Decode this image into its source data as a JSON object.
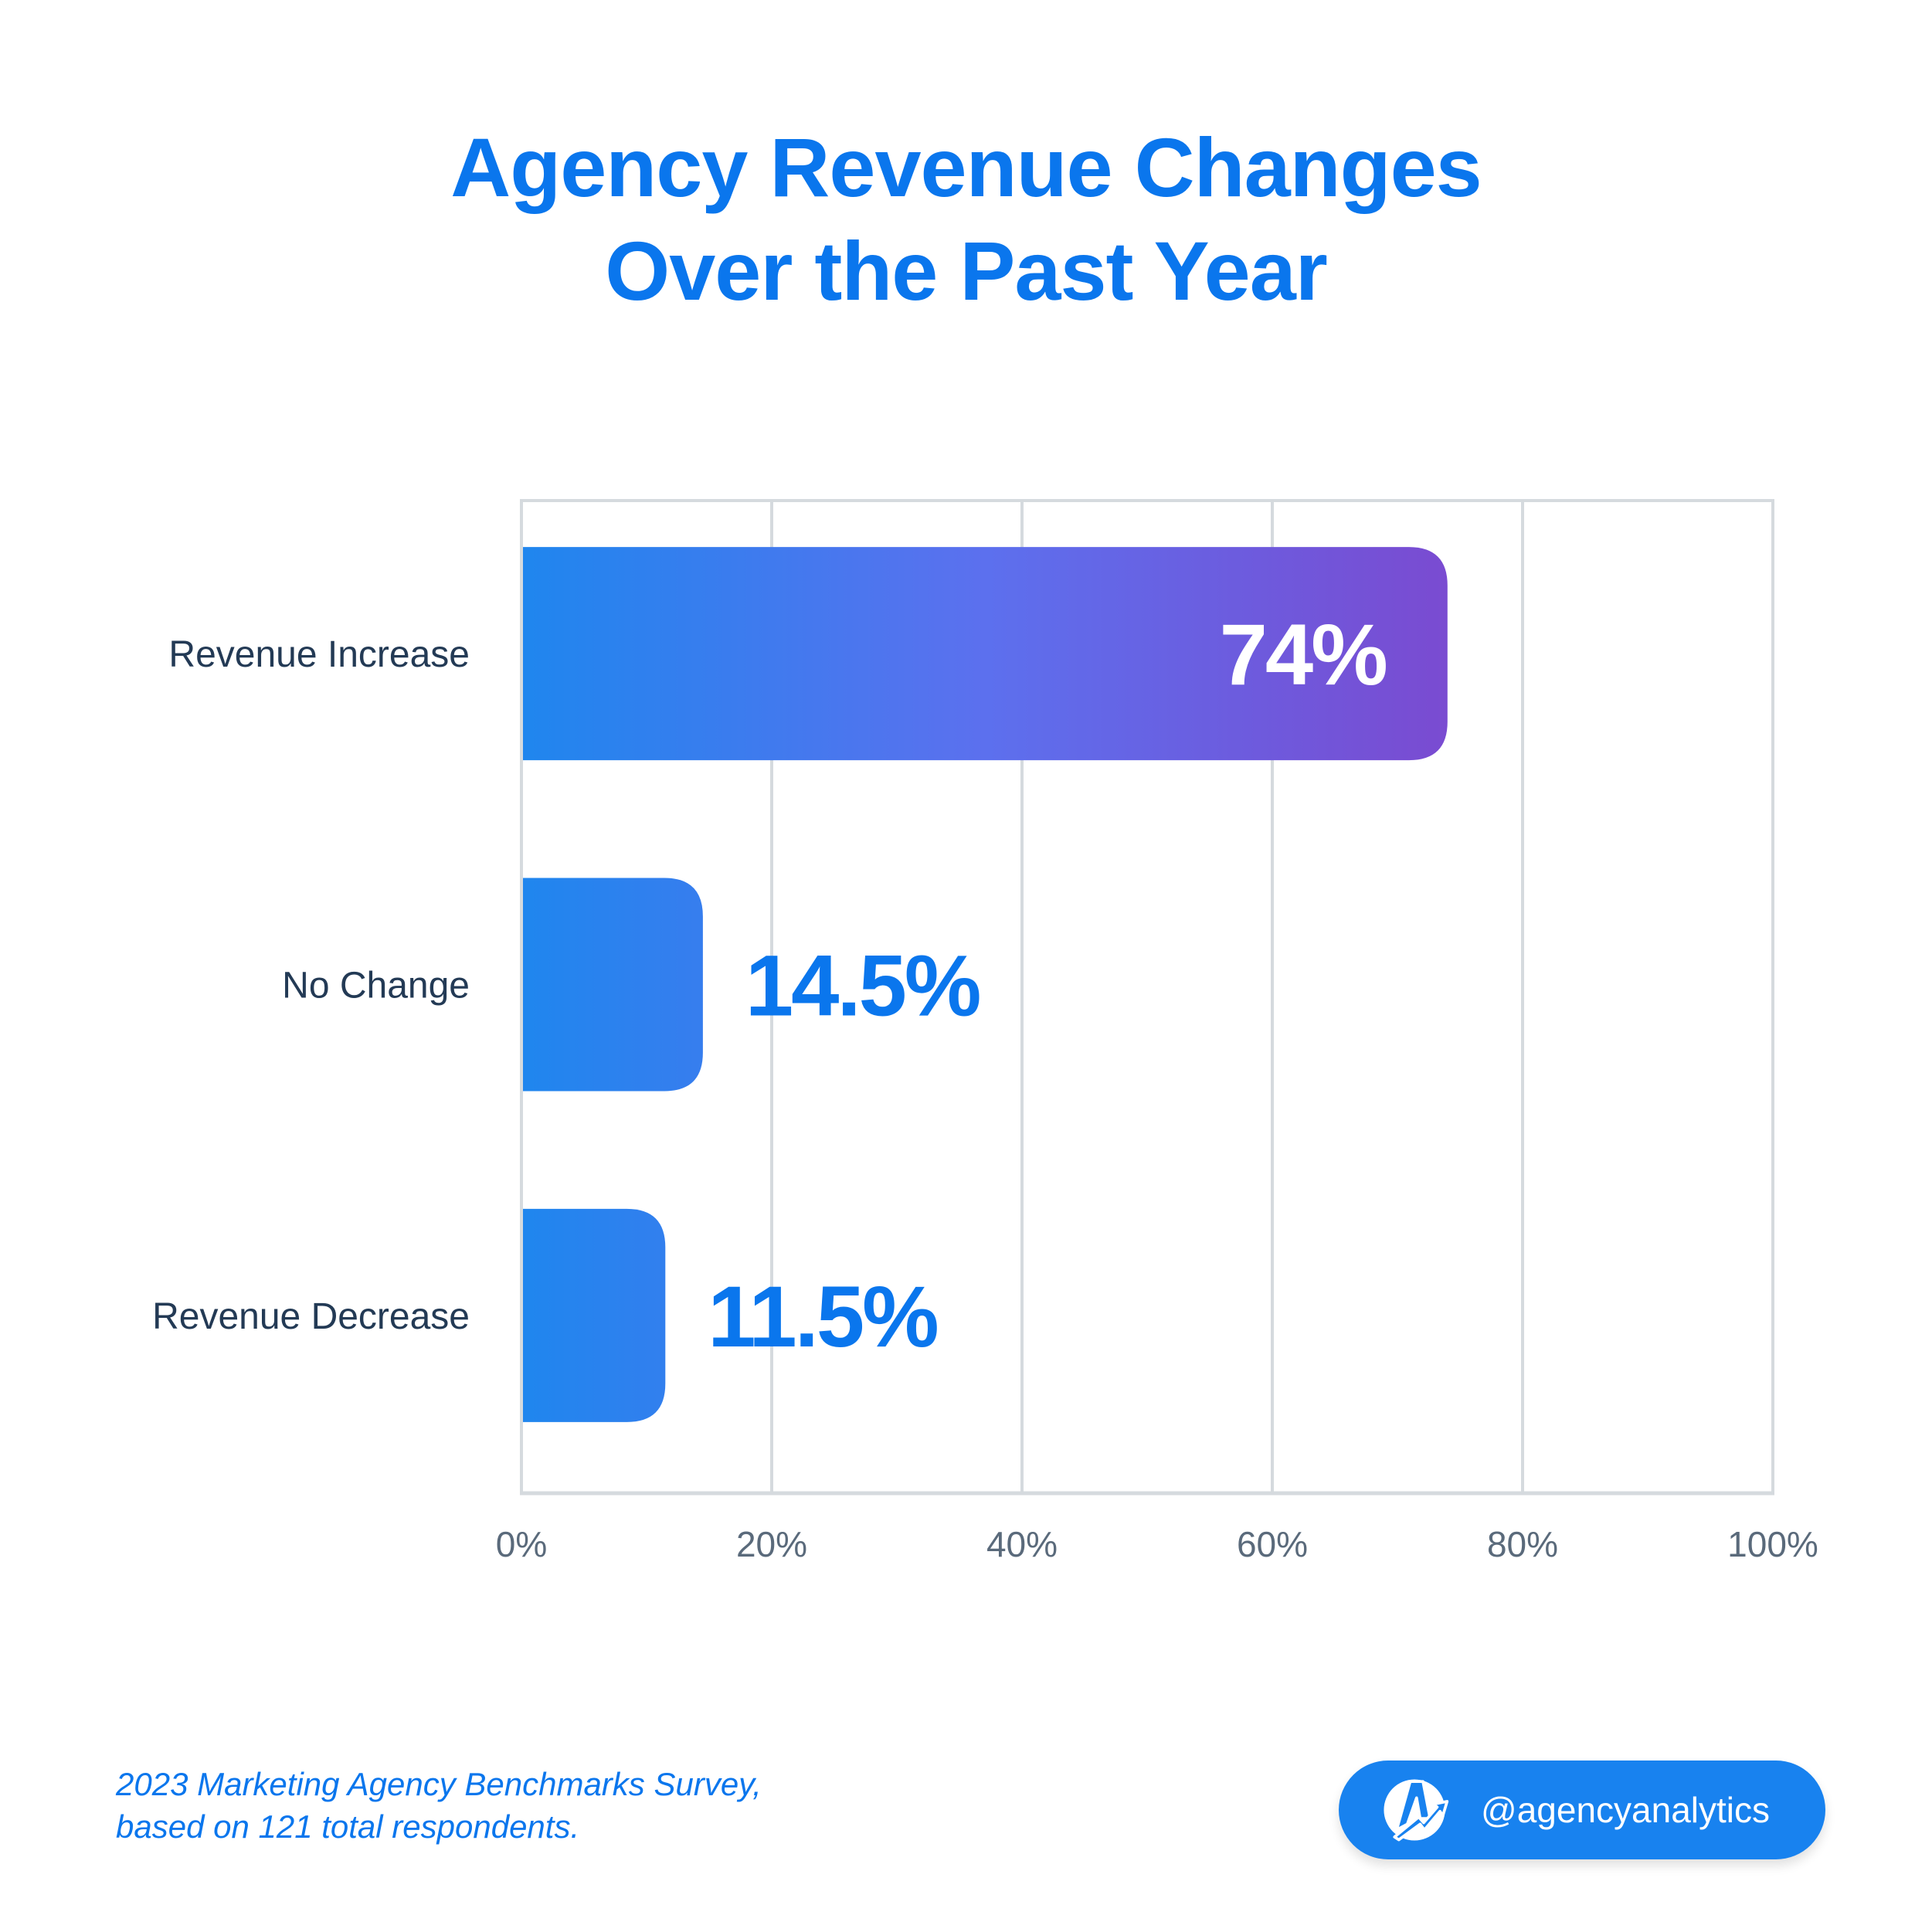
{
  "title": {
    "line1": "Agency Revenue Changes",
    "line2": "Over the Past Year"
  },
  "chart_data": {
    "type": "bar",
    "orientation": "horizontal",
    "title": "Agency Revenue Changes Over the Past Year",
    "categories": [
      "Revenue Increase",
      "No Change",
      "Revenue Decrease"
    ],
    "values": [
      74,
      14.5,
      11.5
    ],
    "value_labels": [
      "74%",
      "14.5%",
      "11.5%"
    ],
    "xlabel": "",
    "ylabel": "",
    "xlim": [
      0,
      100
    ],
    "x_ticks": [
      0,
      20,
      40,
      60,
      80,
      100
    ],
    "x_tick_labels": [
      "0%",
      "20%",
      "40%",
      "60%",
      "80%",
      "100%"
    ],
    "grid": "vertical",
    "legend": "none",
    "colors": {
      "gradient_start": "#1f86ee",
      "gradient_mid": "#5c70ee",
      "gradient_end": "#7a4bd1",
      "grid": "#d5dade",
      "value_outside": "#0a76ed",
      "value_inside": "#ffffff"
    }
  },
  "footer": {
    "source_line1": "2023 Marketing Agency Benchmarks Survey,",
    "source_line2": "based on 121 total respondents."
  },
  "badge": {
    "icon": "agencyanalytics-logo-icon",
    "handle": "@agencyanalytics",
    "color": "#1882ef"
  }
}
